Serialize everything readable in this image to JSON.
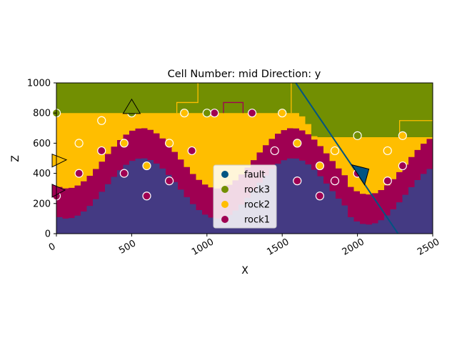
{
  "chart_data": {
    "type": "geological-section",
    "title": "Cell Number: mid Direction: y",
    "xlabel": "X",
    "ylabel": "Z",
    "xlim": [
      0,
      2500
    ],
    "ylim": [
      0,
      1000
    ],
    "xticks": [
      "0",
      "500",
      "1000",
      "1500",
      "2000",
      "2500"
    ],
    "yticks": [
      "0",
      "200",
      "400",
      "600",
      "800",
      "1000"
    ],
    "colors": {
      "basement": "#443a83",
      "rock1": "#9f0052",
      "rock2": "#ffbe00",
      "rock3": "#728f02",
      "fault": "#015482"
    },
    "legend": {
      "placement": "lower-center",
      "entries": [
        {
          "name": "fault",
          "color": "#015482"
        },
        {
          "name": "rock3",
          "color": "#728f02"
        },
        {
          "name": "rock2",
          "color": "#ffbe00"
        },
        {
          "name": "rock1",
          "color": "#9f0052"
        }
      ]
    },
    "surfaces": {
      "rock1_top": {
        "left": {
          "base": 500,
          "amplitude": 200,
          "period": 1000,
          "phase": 300
        },
        "right": {
          "base": 460,
          "amplitude": 200,
          "period": 1000,
          "phase": 300,
          "x_start": 1900
        },
        "cap": 800
      },
      "rock1_bottom": {
        "left": {
          "base": 300,
          "amplitude": 200,
          "period": 1000,
          "phase": 300
        },
        "right": {
          "base": 260,
          "amplitude": 200,
          "period": 1000,
          "phase": 300,
          "x_start": 1900
        }
      },
      "rock2_top": [
        [
          0,
          800
        ],
        [
          1580,
          800
        ],
        [
          1640,
          760
        ],
        [
          1680,
          660
        ],
        [
          1700,
          640
        ],
        [
          2500,
          640
        ]
      ]
    },
    "fault_line": [
      [
        1590,
        1000
      ],
      [
        2270,
        0
      ]
    ],
    "series": [
      {
        "name": "rock1",
        "points": [
          [
            0,
            250
          ],
          [
            150,
            400
          ],
          [
            300,
            550
          ],
          [
            450,
            400
          ],
          [
            600,
            250
          ],
          [
            750,
            350
          ],
          [
            900,
            550
          ],
          [
            1050,
            800
          ],
          [
            1300,
            800
          ],
          [
            1450,
            550
          ],
          [
            1600,
            350
          ],
          [
            1750,
            250
          ],
          [
            1850,
            350
          ],
          [
            2000,
            400
          ],
          [
            2200,
            350
          ],
          [
            2300,
            450
          ]
        ]
      },
      {
        "name": "rock2",
        "points": [
          [
            150,
            600
          ],
          [
            300,
            750
          ],
          [
            450,
            600
          ],
          [
            600,
            450
          ],
          [
            750,
            600
          ],
          [
            850,
            800
          ],
          [
            1500,
            800
          ],
          [
            1600,
            600
          ],
          [
            1750,
            450
          ],
          [
            1850,
            550
          ],
          [
            2200,
            550
          ],
          [
            2300,
            650
          ]
        ]
      },
      {
        "name": "rock3",
        "points": [
          [
            0,
            800
          ],
          [
            500,
            800
          ],
          [
            1000,
            800
          ],
          [
            2000,
            650
          ]
        ]
      }
    ],
    "orientations": [
      {
        "x": 500,
        "z": 830,
        "color": "rock3"
      },
      {
        "x": 2000,
        "z": 400,
        "color": "fault"
      },
      {
        "x": 0,
        "z": 480,
        "color": "rock2"
      },
      {
        "x": 0,
        "z": 280,
        "color": "rock1"
      }
    ]
  }
}
